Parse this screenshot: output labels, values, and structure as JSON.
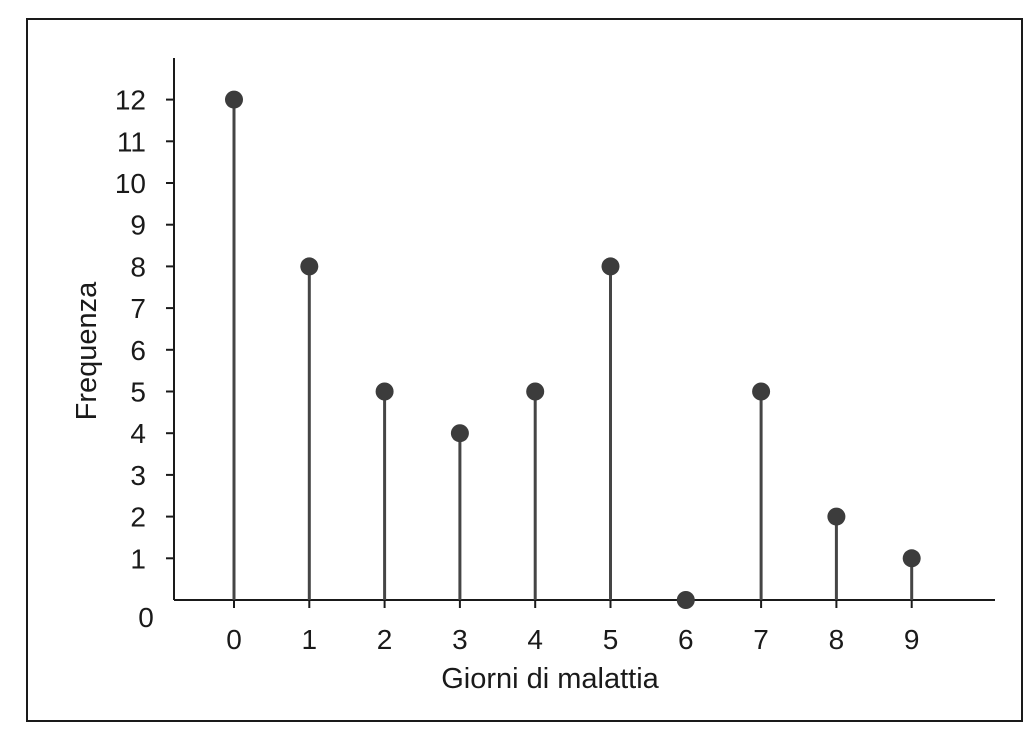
{
  "chart_data": {
    "type": "stem",
    "title": "",
    "xlabel": "Giorni di malattia",
    "ylabel": "Frequenza",
    "x": [
      0,
      1,
      2,
      3,
      4,
      5,
      6,
      7,
      8,
      9
    ],
    "values": [
      12,
      8,
      5,
      4,
      5,
      8,
      0,
      5,
      2,
      1
    ],
    "x_ticks": [
      "0",
      "1",
      "2",
      "3",
      "4",
      "5",
      "6",
      "7",
      "8",
      "9"
    ],
    "y_ticks": [
      "0",
      "1",
      "2",
      "3",
      "4",
      "5",
      "6",
      "7",
      "8",
      "9",
      "10",
      "11",
      "12"
    ],
    "xlim": [
      -0.8,
      10.1
    ],
    "ylim": [
      0,
      12.6
    ],
    "grid": false,
    "legend": "none",
    "colors": {
      "frame": "#1a1a1a",
      "axis": "#1a1a1a",
      "stem": "#454545",
      "marker": "#3c3c3c",
      "text": "#1a1a1a"
    }
  }
}
